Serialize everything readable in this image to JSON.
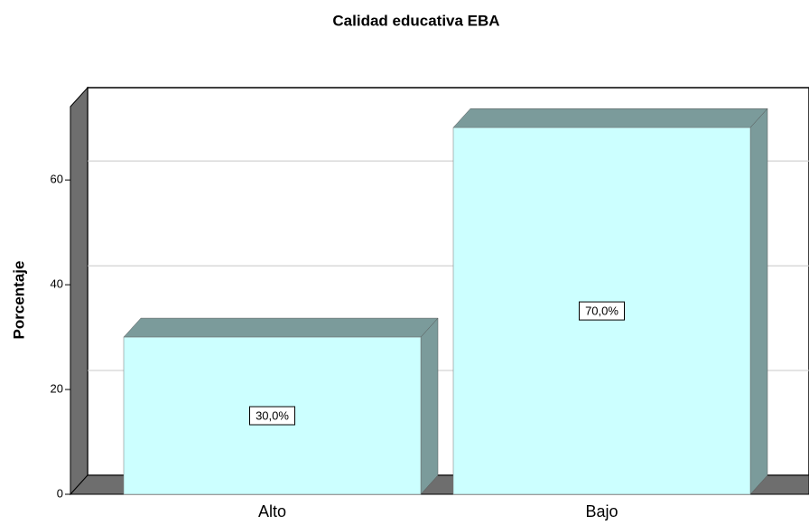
{
  "chart_data": {
    "type": "bar3d",
    "title": "Calidad educativa EBA",
    "ylabel": "Porcentaje",
    "categories": [
      "Alto",
      "Bajo"
    ],
    "values": [
      30,
      70
    ],
    "value_labels": [
      "30,0%",
      "70,0%"
    ],
    "color": "#ccffff",
    "ylim": [
      0,
      74
    ],
    "yticks": [
      0,
      20,
      40,
      60
    ],
    "grid": true
  }
}
